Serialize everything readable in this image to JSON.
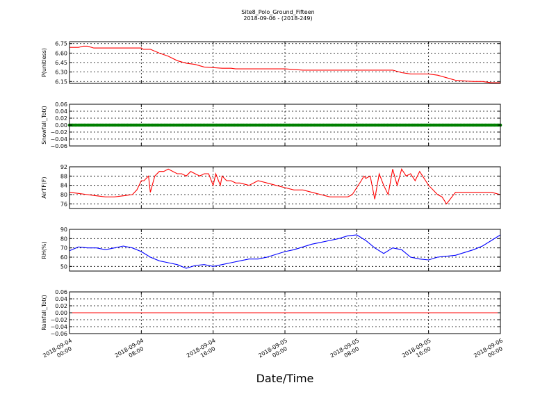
{
  "figure": {
    "title": "Site8_Polo_Ground_Fifteen",
    "subtitle": "2018-09-06 - (2018-249)",
    "xlabel": "Date/Time"
  },
  "chart_data": [
    {
      "type": "line",
      "ylabel": "P(unitless)",
      "ylim": [
        6.12,
        6.78
      ],
      "yticks": [
        6.15,
        6.3,
        6.45,
        6.6,
        6.75
      ],
      "yticklabels": [
        "6.15",
        "6.30",
        "6.45",
        "6.60",
        "6.75"
      ],
      "color": "#ff0000",
      "grid": true,
      "x": [
        0,
        1.0,
        1.5,
        1.6,
        2.0,
        2.7,
        4.0,
        5.0,
        8.0,
        8.2,
        9.0,
        10.0,
        11.0,
        12.0,
        13.0,
        14.0,
        15.0,
        16.0,
        17.0,
        18.0,
        18.5,
        19.0,
        20.0,
        21.0,
        24.0,
        26.0,
        29.0,
        31.0,
        32.0,
        32.5,
        33.0,
        34.0,
        35.0,
        36.0,
        37.0,
        38.0,
        39.0,
        40.0,
        41.0,
        42.0,
        43.0,
        44.0,
        45.0,
        46.0,
        47.0,
        48.0
      ],
      "y": [
        6.69,
        6.69,
        6.71,
        6.71,
        6.71,
        6.68,
        6.68,
        6.68,
        6.68,
        6.66,
        6.66,
        6.6,
        6.55,
        6.48,
        6.44,
        6.42,
        6.38,
        6.37,
        6.36,
        6.36,
        6.35,
        6.35,
        6.35,
        6.35,
        6.35,
        6.33,
        6.33,
        6.33,
        6.33,
        6.33,
        6.33,
        6.33,
        6.33,
        6.33,
        6.29,
        6.27,
        6.27,
        6.27,
        6.25,
        6.21,
        6.17,
        6.16,
        6.15,
        6.15,
        6.13,
        6.13
      ]
    },
    {
      "type": "scatter",
      "ylabel": "Snowfall_Tot()",
      "ylim": [
        -0.06,
        0.06
      ],
      "yticks": [
        -0.06,
        -0.04,
        -0.02,
        0.0,
        0.02,
        0.04,
        0.06
      ],
      "yticklabels": [
        "−0.06",
        "−0.04",
        "−0.02",
        "0.00",
        "0.02",
        "0.04",
        "0.06"
      ],
      "color": "#008000",
      "grid": true,
      "x": [
        0,
        48
      ],
      "y": [
        0.0,
        0.0
      ]
    },
    {
      "type": "line",
      "ylabel": "AirTF(F)",
      "ylim": [
        74,
        92
      ],
      "yticks": [
        76,
        80,
        84,
        88,
        92
      ],
      "yticklabels": [
        "76",
        "80",
        "84",
        "88",
        "92"
      ],
      "color": "#ff0000",
      "grid": true,
      "x": [
        0,
        1,
        2,
        3,
        4,
        5,
        6,
        7,
        7.5,
        8,
        8.3,
        8.8,
        9,
        9.5,
        10,
        10.5,
        11,
        12,
        12.5,
        13,
        13.5,
        14,
        14.5,
        15,
        15.5,
        16,
        16.3,
        16.8,
        17,
        17.5,
        18,
        18.5,
        19,
        20,
        21,
        22,
        23,
        24,
        25,
        26,
        27,
        28,
        29,
        30,
        31,
        31.5,
        32,
        32.5,
        32.8,
        33,
        33.5,
        34,
        34.5,
        35,
        35.5,
        36,
        36.5,
        37,
        37.5,
        38,
        38.5,
        39,
        40,
        40.5,
        41,
        41.5,
        42,
        43,
        44,
        45,
        46,
        47,
        48
      ],
      "y": [
        81,
        80.5,
        80,
        79.5,
        79,
        79,
        79.5,
        80,
        82,
        86,
        86,
        88,
        81,
        88,
        90,
        90,
        91,
        89,
        89,
        88,
        90,
        89,
        88,
        89,
        89,
        84,
        89,
        84,
        88,
        86,
        86,
        85,
        85,
        84,
        86,
        85,
        84,
        83,
        82,
        82,
        81,
        80,
        79,
        79,
        79,
        80,
        83,
        86,
        88,
        87,
        88,
        78,
        89,
        84,
        80,
        91,
        84,
        91,
        88,
        89,
        86,
        90,
        84,
        82,
        80,
        79,
        76,
        81,
        81,
        81,
        81,
        81,
        80
      ]
    },
    {
      "type": "line",
      "ylabel": "RH(%)",
      "ylim": [
        45,
        90
      ],
      "yticks": [
        50,
        60,
        70,
        80,
        90
      ],
      "yticklabels": [
        "50",
        "60",
        "70",
        "80",
        "90"
      ],
      "color": "#0000ff",
      "grid": true,
      "x": [
        0,
        1,
        2,
        3,
        4,
        5,
        6,
        7,
        8,
        9,
        10,
        11,
        12,
        13,
        14,
        15,
        16,
        17,
        18,
        19,
        20,
        21,
        22,
        23,
        24,
        25,
        26,
        27,
        28,
        29,
        30,
        31,
        32,
        33,
        34,
        35,
        36,
        37,
        38,
        39,
        40,
        41,
        42,
        43,
        44,
        45,
        46,
        47,
        48
      ],
      "y": [
        67,
        71,
        70,
        70,
        68,
        70,
        72,
        70,
        66,
        60,
        56,
        54,
        52,
        48,
        51,
        52,
        50,
        52,
        54,
        56,
        58,
        58,
        60,
        63,
        66,
        68,
        71,
        74,
        76,
        78,
        80,
        83,
        84,
        78,
        70,
        64,
        70,
        68,
        60,
        58,
        57,
        60,
        61,
        62,
        65,
        68,
        72,
        78,
        84
      ]
    },
    {
      "type": "line",
      "ylabel": "Rainfall_Tot()",
      "ylim": [
        -0.06,
        0.06
      ],
      "yticks": [
        -0.06,
        -0.04,
        -0.02,
        0.0,
        0.02,
        0.04,
        0.06
      ],
      "yticklabels": [
        "−0.06",
        "−0.04",
        "−0.02",
        "0.00",
        "0.02",
        "0.04",
        "0.06"
      ],
      "color": "#ff0000",
      "grid": true,
      "x": [
        0,
        48
      ],
      "y": [
        0.0,
        0.0
      ]
    }
  ],
  "x_axis": {
    "xlim": [
      0,
      48
    ],
    "ticks": [
      0,
      8,
      16,
      24,
      32,
      40,
      48
    ],
    "ticklabels": [
      [
        "2018-09-04",
        "00:00"
      ],
      [
        "2018-09-04",
        "08:00"
      ],
      [
        "2018-09-04",
        "16:00"
      ],
      [
        "2018-09-05",
        "00:00"
      ],
      [
        "2018-09-05",
        "08:00"
      ],
      [
        "2018-09-05",
        "16:00"
      ],
      [
        "2018-09-06",
        "00:00"
      ]
    ]
  }
}
